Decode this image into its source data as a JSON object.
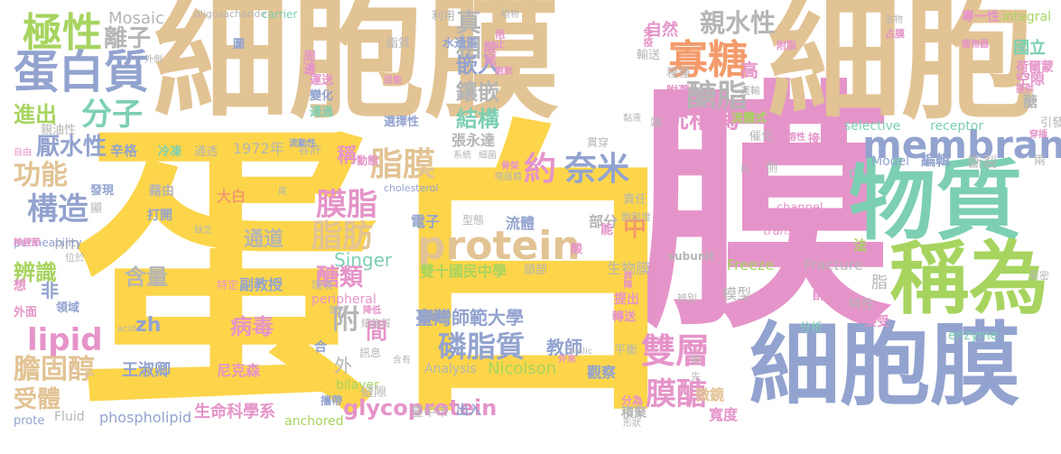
{
  "palette": {
    "tan": "#e2c394",
    "yellow": "#fcd54a",
    "pink": "#e594c9",
    "blue": "#93a3cf",
    "green": "#78cc84",
    "teal": "#7ccfb2",
    "lime": "#a7d45f",
    "orange": "#f39b6b",
    "gray": "#b5b5b5"
  },
  "words": [
    {
      "text": "細胞膜",
      "color": "#e2c394"
    },
    {
      "text": "膜",
      "color": "#e594c9"
    },
    {
      "text": "細胞",
      "color": "#e2c394"
    },
    {
      "text": "蛋白",
      "color": "#fcd54a"
    },
    {
      "text": "物質",
      "color": "#7ccfb2"
    },
    {
      "text": "稱為",
      "color": "#a7d45f"
    },
    {
      "text": "細胞膜",
      "color": "#93a3cf"
    },
    {
      "text": "protein",
      "color": "#e2c394"
    },
    {
      "text": "membrane",
      "color": "#93a3cf"
    },
    {
      "text": "蛋白質",
      "color": "#93a3cf"
    },
    {
      "text": "極性",
      "color": "#a7d45f"
    },
    {
      "text": "離子",
      "color": "#b5b5b5"
    },
    {
      "text": "分子",
      "color": "#7ccfb2"
    },
    {
      "text": "寡糖",
      "color": "#f39b6b"
    },
    {
      "text": "醣脂",
      "color": "#b5b5b5"
    },
    {
      "text": "親水性",
      "color": "#b5b5b5"
    },
    {
      "text": "真相",
      "color": "#b5b5b5"
    },
    {
      "text": "嵌入",
      "color": "#93a3cf"
    },
    {
      "text": "鑲嵌",
      "color": "#b5b5b5"
    },
    {
      "text": "結構",
      "color": "#7ccfb2"
    },
    {
      "text": "統稱為",
      "color": "#e594c9"
    },
    {
      "text": "進出",
      "color": "#a7d45f"
    },
    {
      "text": "厭水性",
      "color": "#93a3cf"
    },
    {
      "text": "功能",
      "color": "#e2c394"
    },
    {
      "text": "構造",
      "color": "#93a3cf"
    },
    {
      "text": "脂膜",
      "color": "#e2c394"
    },
    {
      "text": "約",
      "color": "#e594c9"
    },
    {
      "text": "奈米",
      "color": "#93a3cf"
    },
    {
      "text": "膜脂",
      "color": "#e594c9"
    },
    {
      "text": "脂肪",
      "color": "#e2c394"
    },
    {
      "text": "lipid",
      "color": "#e594c9"
    },
    {
      "text": "辨識",
      "color": "#a7d45f"
    },
    {
      "text": "醣類",
      "color": "#e594c9"
    },
    {
      "text": "膽固醇",
      "color": "#e2c394"
    },
    {
      "text": "受體",
      "color": "#e2c394"
    },
    {
      "text": "雙層",
      "color": "#e594c9"
    },
    {
      "text": "磷脂質",
      "color": "#93a3cf"
    },
    {
      "text": "膜醣",
      "color": "#e594c9"
    },
    {
      "text": "glycoprotein",
      "color": "#e594c9"
    },
    {
      "text": "中",
      "color": "#f39b6b"
    },
    {
      "text": "附",
      "color": "#b5b5b5"
    },
    {
      "text": "間",
      "color": "#e594c9"
    },
    {
      "text": "通道",
      "color": "#b5b5b5"
    },
    {
      "text": "含量",
      "color": "#b5b5b5"
    },
    {
      "text": "病毒",
      "color": "#e594c9"
    },
    {
      "text": "zh",
      "color": "#93a3cf"
    },
    {
      "text": "Mosaic",
      "color": "#b5b5b5"
    },
    {
      "text": "1972年",
      "color": "#b5b5b5"
    },
    {
      "text": "nm",
      "color": "#b5b5b5"
    },
    {
      "text": "Singer",
      "color": "#7ccfb2"
    },
    {
      "text": "Nicolson",
      "color": "#a7d45f"
    },
    {
      "text": "phospholipid",
      "color": "#93a3cf"
    },
    {
      "text": "生命科學系",
      "color": "#e594c9"
    },
    {
      "text": "臺灣師範大學",
      "color": "#93a3cf"
    },
    {
      "text": "雙十國民中學",
      "color": "#a7d45f"
    },
    {
      "text": "電子",
      "color": "#93a3cf"
    },
    {
      "text": "流體",
      "color": "#93a3cf"
    },
    {
      "text": "生物膜",
      "color": "#b5b5b5"
    },
    {
      "text": "模型",
      "color": "#b5b5b5"
    },
    {
      "text": "Freeze",
      "color": "#a7d45f"
    },
    {
      "text": "Fracture",
      "color": "#b5b5b5"
    },
    {
      "text": "高",
      "color": "#e594c9"
    },
    {
      "text": "自然",
      "color": "#e594c9"
    },
    {
      "text": "稱",
      "color": "#e594c9"
    },
    {
      "text": "部分",
      "color": "#b5b5b5"
    },
    {
      "text": "教師",
      "color": "#93a3cf"
    },
    {
      "text": "王淑卿",
      "color": "#93a3cf"
    },
    {
      "text": "尼克森",
      "color": "#e594c9"
    },
    {
      "text": "張永達",
      "color": "#b5b5b5"
    },
    {
      "text": "副教授",
      "color": "#93a3cf"
    },
    {
      "text": "大白",
      "color": "#f39b6b"
    },
    {
      "text": "藉由",
      "color": "#b5b5b5"
    },
    {
      "text": "打開",
      "color": "#93a3cf"
    },
    {
      "text": "觀察",
      "color": "#93a3cf"
    },
    {
      "text": "微鏡",
      "color": "#e2c394"
    },
    {
      "text": "寬度",
      "color": "#e594c9"
    },
    {
      "text": "國立",
      "color": "#7ccfb2"
    },
    {
      "text": "荷爾蒙",
      "color": "#e594c9"
    },
    {
      "text": "空隙",
      "color": "#e594c9"
    },
    {
      "text": "醣",
      "color": "#b5b5b5"
    },
    {
      "text": "subunit",
      "color": "#b5b5b5"
    },
    {
      "text": "積聚",
      "color": "#b5b5b5"
    },
    {
      "text": "integral",
      "color": "#a7d45f"
    },
    {
      "text": "專一性",
      "color": "#e594c9"
    },
    {
      "text": "selective",
      "color": "#7ccfb2"
    },
    {
      "text": "receptor",
      "color": "#7ccfb2"
    },
    {
      "text": "Cell",
      "color": "#7ccfb2"
    },
    {
      "text": "Model",
      "color": "#93a3cf"
    },
    {
      "text": "編輯",
      "color": "#93a3cf"
    },
    {
      "text": "斷裂",
      "color": "#b5b5b5"
    },
    {
      "text": "enzyme",
      "color": "#7ccfb2"
    },
    {
      "text": "分析",
      "color": "#7ccfb2"
    },
    {
      "text": "酵素",
      "color": "#e594c9"
    },
    {
      "text": "特性",
      "color": "#b5b5b5"
    },
    {
      "text": "接受",
      "color": "#e594c9"
    },
    {
      "text": "Analysis",
      "color": "#b5b5b5"
    },
    {
      "text": "channel",
      "color": "#e594c9"
    },
    {
      "text": "transport",
      "color": "#e594c9"
    },
    {
      "text": "permeability",
      "color": "#93a3cf"
    },
    {
      "text": "Fluid",
      "color": "#b5b5b5"
    },
    {
      "text": "bilayer",
      "color": "#a7d45f"
    },
    {
      "text": "peripheral",
      "color": "#e594c9"
    },
    {
      "text": "anchored",
      "color": "#a7d45f"
    },
    {
      "text": "prote",
      "color": "#93a3cf"
    },
    {
      "text": "oligosacharide",
      "color": "#b5b5b5"
    },
    {
      "text": "carrier",
      "color": "#7ccfb2"
    },
    {
      "text": "cholesterol",
      "color": "#93a3cf"
    },
    {
      "text": "水通道",
      "color": "#93a3cf"
    },
    {
      "text": "酸尾",
      "color": "#e594c9"
    },
    {
      "text": "脂質",
      "color": "#b5b5b5"
    },
    {
      "text": "選擇性",
      "color": "#93a3cf"
    },
    {
      "text": "容許",
      "color": "#b5b5b5"
    },
    {
      "text": "冷凍",
      "color": "#7ccfb2"
    },
    {
      "text": "通透",
      "color": "#b5b5b5"
    },
    {
      "text": "辛格",
      "color": "#93a3cf"
    },
    {
      "text": "親油性",
      "color": "#b5b5b5"
    },
    {
      "text": "自由",
      "color": "#e594c9"
    },
    {
      "text": "發現",
      "color": "#93a3cf"
    },
    {
      "text": "出入",
      "color": "#93a3cf"
    },
    {
      "text": "臺中市",
      "color": "#b5b5b5"
    },
    {
      "text": "縫隙",
      "color": "#b5b5b5"
    },
    {
      "text": "提出",
      "color": "#e594c9"
    },
    {
      "text": "轉送",
      "color": "#e594c9"
    },
    {
      "text": "平衡",
      "color": "#b5b5b5"
    },
    {
      "text": "責任",
      "color": "#b5b5b5"
    },
    {
      "text": "飽和度",
      "color": "#b5b5b5"
    },
    {
      "text": "單層",
      "color": "#93a3cf"
    },
    {
      "text": "頭部",
      "color": "#b5b5b5"
    },
    {
      "text": "型態",
      "color": "#b5b5b5"
    },
    {
      "text": "特定",
      "color": "#e594c9"
    },
    {
      "text": "環境",
      "color": "#b5b5b5"
    },
    {
      "text": "攜帶",
      "color": "#93a3cf"
    },
    {
      "text": "外",
      "color": "#b5b5b5"
    },
    {
      "text": "合",
      "color": "#93a3cf"
    },
    {
      "text": "非",
      "color": "#93a3cf"
    },
    {
      "text": "想",
      "color": "#e594c9"
    },
    {
      "text": "外面",
      "color": "#e594c9"
    },
    {
      "text": "領域",
      "color": "#93a3cf"
    },
    {
      "text": "位於",
      "color": "#b5b5b5"
    },
    {
      "text": "缺乏",
      "color": "#b5b5b5"
    },
    {
      "text": "顯",
      "color": "#b5b5b5"
    },
    {
      "text": "周邊",
      "color": "#e594c9"
    },
    {
      "text": "運送",
      "color": "#e594c9"
    },
    {
      "text": "變化",
      "color": "#93a3cf"
    },
    {
      "text": "通過",
      "color": "#7ccfb2"
    },
    {
      "text": "附著",
      "color": "#e594c9"
    },
    {
      "text": "種種",
      "color": "#b5b5b5"
    },
    {
      "text": "催化",
      "color": "#b5b5b5"
    },
    {
      "text": "流體式",
      "color": "#a7d45f"
    },
    {
      "text": "接收",
      "color": "#e594c9"
    },
    {
      "text": "引發",
      "color": "#b5b5b5"
    },
    {
      "text": "兩",
      "color": "#b5b5b5"
    },
    {
      "text": "法",
      "color": "#a7d45f"
    },
    {
      "text": "緊密",
      "color": "#b5b5b5"
    },
    {
      "text": "利用",
      "color": "#b5b5b5"
    },
    {
      "text": "圖",
      "color": "#93a3cf"
    },
    {
      "text": "側",
      "color": "#b5b5b5"
    },
    {
      "text": "辨別",
      "color": "#b5b5b5"
    },
    {
      "text": "分為",
      "color": "#e594c9"
    },
    {
      "text": "訊息",
      "color": "#b5b5b5"
    },
    {
      "text": "端",
      "color": "#b5b5b5"
    },
    {
      "text": "動態",
      "color": "#e594c9"
    },
    {
      "text": "貫穿",
      "color": "#b5b5b5"
    },
    {
      "text": "酸",
      "color": "#e594c9"
    },
    {
      "text": "脂",
      "color": "#b5b5b5"
    },
    {
      "text": "能",
      "color": "#e594c9"
    },
    {
      "text": "外側",
      "color": "#b5b5b5"
    },
    {
      "text": "植物",
      "color": "#b5b5b5"
    },
    {
      "text": "阻止",
      "color": "#e594c9"
    },
    {
      "text": "免疫",
      "color": "#e594c9"
    },
    {
      "text": "輸送",
      "color": "#b5b5b5"
    },
    {
      "text": "附脂",
      "color": "#e594c9"
    },
    {
      "text": "生物",
      "color": "#b5b5b5"
    },
    {
      "text": "占膜",
      "color": "#e594c9"
    },
    {
      "text": "植物器",
      "color": "#e594c9"
    },
    {
      "text": "提供",
      "color": "#e594c9"
    },
    {
      "text": "運輸",
      "color": "#b5b5b5"
    },
    {
      "text": "黏液",
      "color": "#b5b5b5"
    },
    {
      "text": "水溶性",
      "color": "#e594c9"
    },
    {
      "text": "穿插",
      "color": "#e594c9"
    },
    {
      "text": "胞飲",
      "color": "#e594c9"
    },
    {
      "text": "目能",
      "color": "#e594c9"
    },
    {
      "text": "流動性",
      "color": "#93a3cf"
    },
    {
      "text": "細胞質",
      "color": "#b5b5b5"
    },
    {
      "text": "降低",
      "color": "#e594c9"
    },
    {
      "text": "含有",
      "color": "#b5b5b5"
    },
    {
      "text": "外來",
      "color": "#e594c9"
    },
    {
      "text": "先",
      "color": "#b5b5b5"
    },
    {
      "text": "Sialic",
      "color": "#b5b5b5"
    },
    {
      "text": "形狀",
      "color": "#b5b5b5"
    },
    {
      "text": "頭",
      "color": "#b5b5b5"
    },
    {
      "text": "屏障",
      "color": "#e594c9"
    },
    {
      "text": "系統",
      "color": "#b5b5b5"
    },
    {
      "text": "骨架",
      "color": "#e594c9"
    },
    {
      "text": "細菌",
      "color": "#b5b5b5"
    },
    {
      "text": "噬菌體",
      "color": "#b5b5b5"
    },
    {
      "text": "神經節",
      "color": "#e594c9"
    },
    {
      "text": "尾",
      "color": "#b5b5b5"
    },
    {
      "text": "流感",
      "color": "#e594c9"
    },
    {
      "text": "酸性",
      "color": "#b5b5b5"
    },
    {
      "text": "註",
      "color": "#b5b5b5"
    },
    {
      "text": "acid",
      "color": "#b5b5b5"
    }
  ]
}
